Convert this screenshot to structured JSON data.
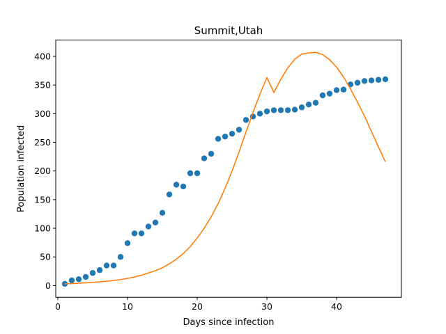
{
  "chart_data": {
    "type": "scatter",
    "title": "Summit,Utah",
    "xlabel": "Days since infection",
    "ylabel": "Population infected",
    "xlim": [
      -0.3,
      49.3
    ],
    "ylim": [
      -20.4,
      428.4
    ],
    "xticks": [
      0,
      10,
      20,
      30,
      40
    ],
    "yticks": [
      0,
      50,
      100,
      150,
      200,
      250,
      300,
      350,
      400
    ],
    "grid": false,
    "series": [
      {
        "kind": "scatter",
        "color": "#1f77b4",
        "x": [
          1,
          2,
          3,
          4,
          5,
          6,
          7,
          8,
          9,
          10,
          11,
          12,
          13,
          14,
          15,
          16,
          17,
          18,
          19,
          20,
          21,
          22,
          23,
          24,
          25,
          26,
          27,
          28,
          29,
          30,
          31,
          32,
          33,
          34,
          35,
          36,
          37,
          38,
          39,
          40,
          41,
          42,
          43,
          44,
          45,
          46,
          47
        ],
        "y": [
          3,
          9,
          11,
          15,
          22,
          27,
          35,
          35,
          50,
          74,
          91,
          91,
          103,
          110,
          127,
          159,
          176,
          173,
          196,
          196,
          222,
          230,
          256,
          260,
          265,
          272,
          289,
          295,
          300,
          304,
          306,
          306,
          306,
          307,
          311,
          316,
          319,
          332,
          335,
          341,
          342,
          351,
          354,
          357,
          358,
          359,
          360
        ]
      },
      {
        "kind": "line",
        "color": "#ff7f0e",
        "x": [
          1,
          2,
          3,
          4,
          5,
          6,
          7,
          8,
          9,
          10,
          11,
          12,
          13,
          14,
          15,
          16,
          17,
          18,
          19,
          20,
          21,
          22,
          23,
          24,
          25,
          26,
          27,
          28,
          29,
          30,
          31,
          32,
          33,
          34,
          35,
          36,
          37,
          38,
          39,
          40,
          41,
          42,
          43,
          44,
          45,
          46,
          47
        ],
        "y": [
          3,
          3.5,
          4,
          4.8,
          5.5,
          6.5,
          7.5,
          9,
          10.5,
          12.5,
          15,
          18,
          22,
          26,
          31,
          38,
          46,
          56,
          68,
          83,
          100,
          120,
          143,
          170,
          200,
          233,
          268,
          302,
          334,
          363,
          337,
          360,
          380,
          395,
          404,
          406,
          407,
          403,
          394,
          381,
          364,
          343,
          320,
          296,
          269,
          242,
          216
        ]
      }
    ]
  }
}
